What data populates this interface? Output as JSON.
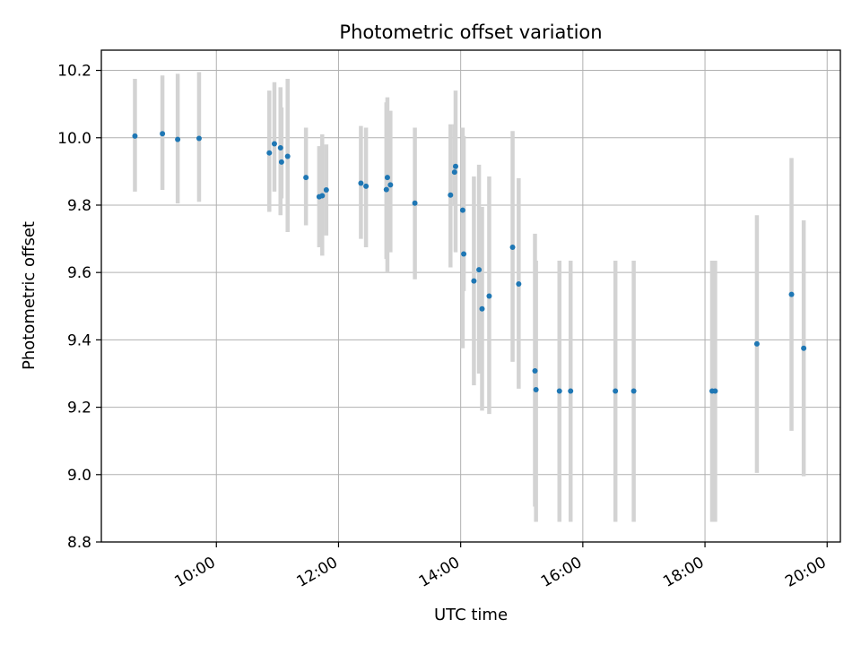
{
  "chart_data": {
    "type": "scatter",
    "title": "Photometric offset variation",
    "xlabel": "UTC time",
    "ylabel": "Photometric offset",
    "grid": true,
    "legend": "none",
    "xlim": [
      "08:07",
      "20:13"
    ],
    "ylim": [
      8.8,
      10.26
    ],
    "x_ticks": [
      "10:00",
      "12:00",
      "14:00",
      "16:00",
      "18:00",
      "20:00"
    ],
    "y_ticks": [
      "8.8",
      "9.0",
      "9.2",
      "9.4",
      "9.6",
      "9.8",
      "10.0",
      "10.2"
    ],
    "colors": {
      "marker": "#1f77b4",
      "error_bar": "#d3d3d3",
      "grid": "#b0b0b0"
    },
    "series": [
      {
        "x": [
          "08:40",
          "09:07",
          "09:22",
          "09:43",
          "10:52",
          "10:57",
          "11:03",
          "11:04",
          "11:10",
          "11:28",
          "11:41",
          "11:44",
          "11:48",
          "12:22",
          "12:27",
          "12:47",
          "12:48",
          "12:51",
          "13:15",
          "13:50",
          "13:54",
          "13:55",
          "14:02",
          "14:03",
          "14:13",
          "14:18",
          "14:21",
          "14:28",
          "14:51",
          "14:57",
          "15:13",
          "15:14",
          "15:37",
          "15:48",
          "16:32",
          "16:50",
          "18:07",
          "18:10",
          "18:51",
          "19:25",
          "19:37"
        ],
        "y": [
          10.005,
          10.012,
          9.995,
          9.998,
          9.955,
          9.982,
          9.97,
          9.928,
          9.945,
          9.882,
          9.825,
          9.828,
          9.845,
          9.865,
          9.856,
          9.846,
          9.882,
          9.86,
          9.806,
          9.83,
          9.898,
          9.915,
          9.785,
          9.655,
          9.575,
          9.608,
          9.492,
          9.53,
          9.675,
          9.566,
          9.308,
          9.252,
          9.248,
          9.248,
          9.248,
          9.248,
          9.248,
          9.248,
          9.388,
          9.535,
          9.375
        ],
        "y_low": [
          9.84,
          9.845,
          9.805,
          9.81,
          9.78,
          9.84,
          9.77,
          9.82,
          9.72,
          9.74,
          9.675,
          9.65,
          9.71,
          9.7,
          9.675,
          9.64,
          9.6,
          9.66,
          9.58,
          9.615,
          9.8,
          9.66,
          9.375,
          9.545,
          9.265,
          9.3,
          9.19,
          9.18,
          9.335,
          9.255,
          8.905,
          8.86,
          8.86,
          8.86,
          8.86,
          8.86,
          8.86,
          8.86,
          9.005,
          9.13,
          8.995
        ],
        "y_high": [
          10.175,
          10.185,
          10.19,
          10.195,
          10.14,
          10.165,
          10.15,
          10.09,
          10.175,
          10.03,
          9.975,
          10.01,
          9.98,
          10.035,
          10.03,
          10.105,
          10.12,
          10.08,
          10.03,
          10.04,
          10.04,
          10.14,
          10.03,
          10.005,
          9.885,
          9.92,
          9.795,
          9.885,
          10.02,
          9.88,
          9.715,
          9.635,
          9.635,
          9.635,
          9.635,
          9.635,
          9.635,
          9.635,
          9.77,
          9.94,
          9.755
        ]
      }
    ]
  }
}
